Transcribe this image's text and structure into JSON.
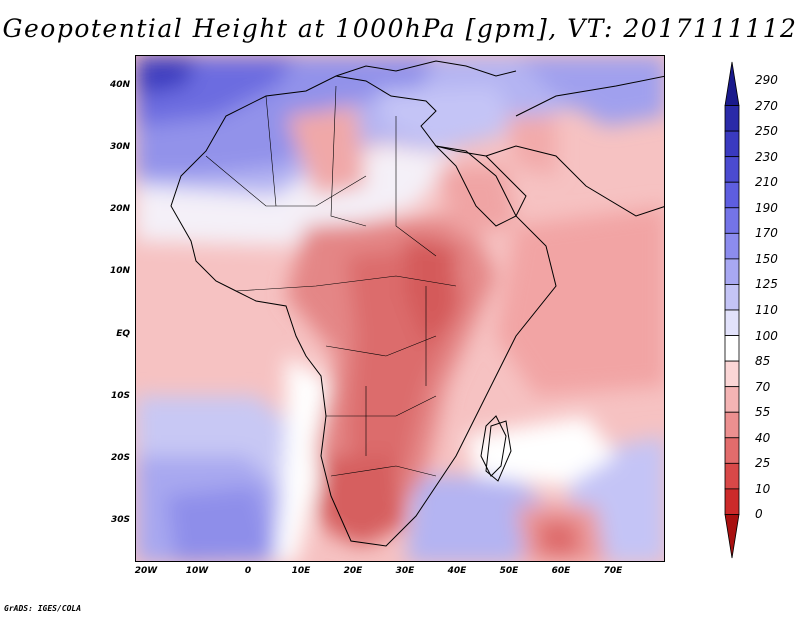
{
  "title": "Geopotential Height at 1000hPa [gpm], VT: 2017111112",
  "credit": "GrADS: IGES/COLA",
  "lat_labels": [
    "40N",
    "30N",
    "20N",
    "10N",
    "EQ",
    "10S",
    "20S",
    "30S"
  ],
  "lon_labels": [
    "20W",
    "10W",
    "0",
    "10E",
    "20E",
    "30E",
    "40E",
    "50E",
    "60E",
    "70E"
  ],
  "colorbar": {
    "levels": [
      "290",
      "270",
      "250",
      "230",
      "210",
      "190",
      "170",
      "150",
      "125",
      "110",
      "100",
      "85",
      "70",
      "55",
      "40",
      "25",
      "10",
      "0"
    ],
    "colors": [
      "#1a1a8c",
      "#2a2aa8",
      "#3a3ac0",
      "#4b4bd0",
      "#5e5ee0",
      "#7474e8",
      "#8c8cee",
      "#a8a8f2",
      "#c4c4f6",
      "#e2e2fb",
      "#ffffff",
      "#fbd6d6",
      "#f4b4b4",
      "#ec9090",
      "#e26c6c",
      "#d84848",
      "#cc2a2a",
      "#a81010"
    ]
  },
  "chart_data": {
    "type": "heatmap",
    "title": "Geopotential Height at 1000hPa [gpm], VT: 2017111112",
    "variable": "Geopotential Height at 1000hPa",
    "units": "gpm",
    "valid_time": "2017111112",
    "lon_range": [
      -22,
      80
    ],
    "lat_range": [
      -37,
      45
    ],
    "lon_ticks": [
      "20W",
      "10W",
      "0",
      "10E",
      "20E",
      "30E",
      "40E",
      "50E",
      "60E",
      "70E"
    ],
    "lat_ticks": [
      "40N",
      "30N",
      "20N",
      "10N",
      "EQ",
      "10S",
      "20S",
      "30S"
    ],
    "contour_levels": [
      0,
      10,
      25,
      40,
      55,
      70,
      85,
      100,
      110,
      125,
      150,
      170,
      190,
      210,
      230,
      250,
      270,
      290
    ]
  }
}
